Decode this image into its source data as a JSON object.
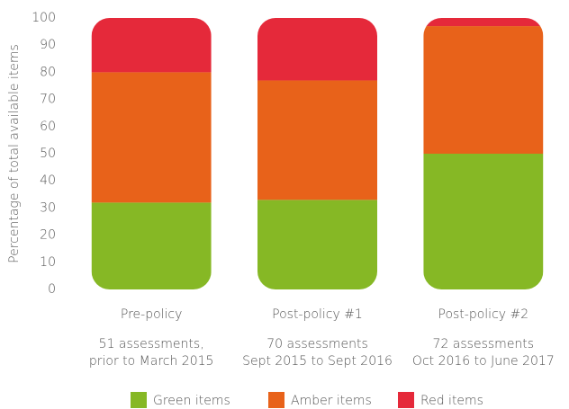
{
  "chart_data": {
    "type": "stacked_bar",
    "y_label": "Percentage of total available items",
    "categories": [
      "Pre-policy",
      "Post-policy #1",
      "Post-policy #2"
    ],
    "category_notes": [
      [
        "51 assessments,",
        "prior to March 2015"
      ],
      [
        "70 assessments",
        "Sept 2015 to Sept 2016"
      ],
      [
        "72 assessments",
        "Oct 2016 to June 2017"
      ]
    ],
    "series": [
      {
        "name": "Green items",
        "color": "#86b825",
        "values": [
          32,
          33,
          50
        ]
      },
      {
        "name": "Amber items",
        "color": "#e8621a",
        "values": [
          48,
          44,
          47
        ]
      },
      {
        "name": "Red items",
        "color": "#e5293a",
        "values": [
          20,
          23,
          3
        ]
      }
    ],
    "ylim": [
      0,
      100
    ],
    "yticks": [
      0,
      10,
      20,
      30,
      40,
      50,
      60,
      70,
      80,
      90,
      100
    ],
    "grid": false,
    "legend": "bottom"
  }
}
